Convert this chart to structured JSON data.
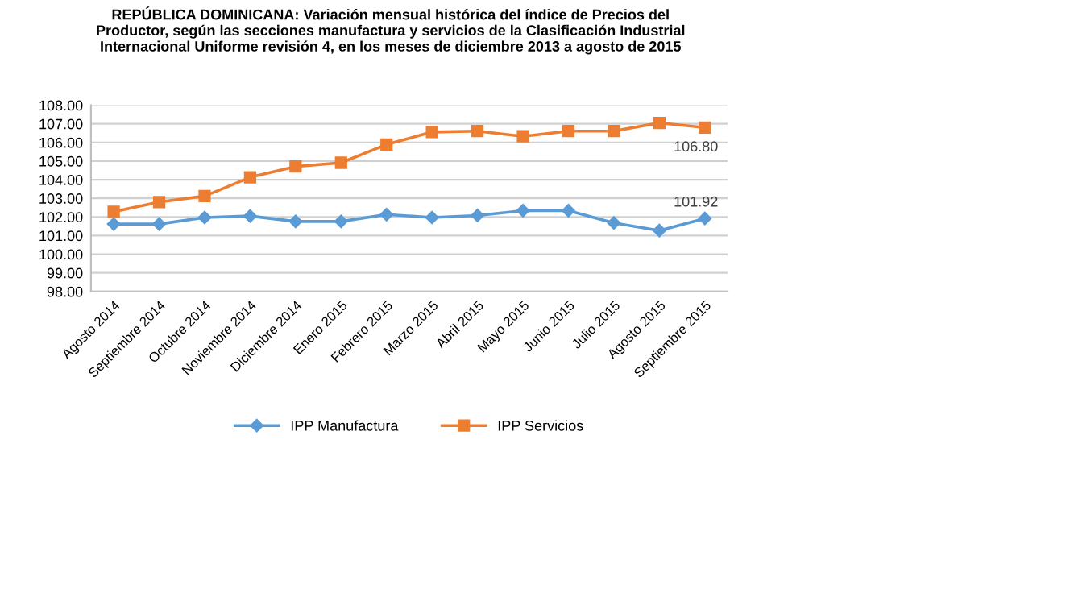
{
  "chart_data": {
    "type": "line",
    "title": "REPÚBLICA DOMINICANA: Variación mensual histórica del índice de Precios del\nProductor, según las secciones manufactura y servicios de la Clasificación Industrial\nInternacional Uniforme revisión 4, en los meses de diciembre 2013 a agosto de 2015",
    "categories": [
      "Agosto 2014",
      "Septiembre 2014",
      "Octubre 2014",
      "Noviembre 2014",
      "Diciembre 2014",
      "Enero 2015",
      "Febrero 2015",
      "Marzo 2015",
      "Abril 2015",
      "Mayo 2015",
      "Junio 2015",
      "Julio 2015",
      "Agosto 2015",
      "Septiembre 2015"
    ],
    "series": [
      {
        "name": "IPP Manufactura",
        "color": "#5b9bd5",
        "marker": "diamond",
        "values": [
          101.62,
          101.62,
          101.97,
          102.05,
          101.76,
          101.76,
          102.13,
          101.97,
          102.08,
          102.34,
          102.34,
          101.68,
          101.27,
          101.92
        ],
        "value_labels": [
          null,
          null,
          null,
          null,
          null,
          null,
          null,
          null,
          null,
          null,
          null,
          null,
          null,
          "101.92"
        ]
      },
      {
        "name": "IPP Servicios",
        "color": "#ed7d31",
        "marker": "square",
        "values": [
          102.28,
          102.8,
          103.12,
          104.13,
          104.71,
          104.91,
          105.89,
          106.56,
          106.61,
          106.33,
          106.61,
          106.61,
          107.05,
          106.8
        ],
        "value_labels": [
          null,
          null,
          null,
          null,
          null,
          null,
          null,
          null,
          null,
          null,
          null,
          null,
          null,
          "106.80"
        ]
      }
    ],
    "ylim": [
      98,
      108
    ],
    "yticks": [
      {
        "value": 98,
        "label": "98.00"
      },
      {
        "value": 99,
        "label": "99.00"
      },
      {
        "value": 100,
        "label": "100.00"
      },
      {
        "value": 101,
        "label": "101.00"
      },
      {
        "value": 102,
        "label": "102.00"
      },
      {
        "value": 103,
        "label": "103.00"
      },
      {
        "value": 104,
        "label": "104.00"
      },
      {
        "value": 105,
        "label": "105.00"
      },
      {
        "value": 106,
        "label": "106.00"
      },
      {
        "value": 107,
        "label": "107.00"
      },
      {
        "value": 108,
        "label": "108.00"
      }
    ],
    "grid": "y",
    "legend": "bottom",
    "line_style": "solid"
  }
}
